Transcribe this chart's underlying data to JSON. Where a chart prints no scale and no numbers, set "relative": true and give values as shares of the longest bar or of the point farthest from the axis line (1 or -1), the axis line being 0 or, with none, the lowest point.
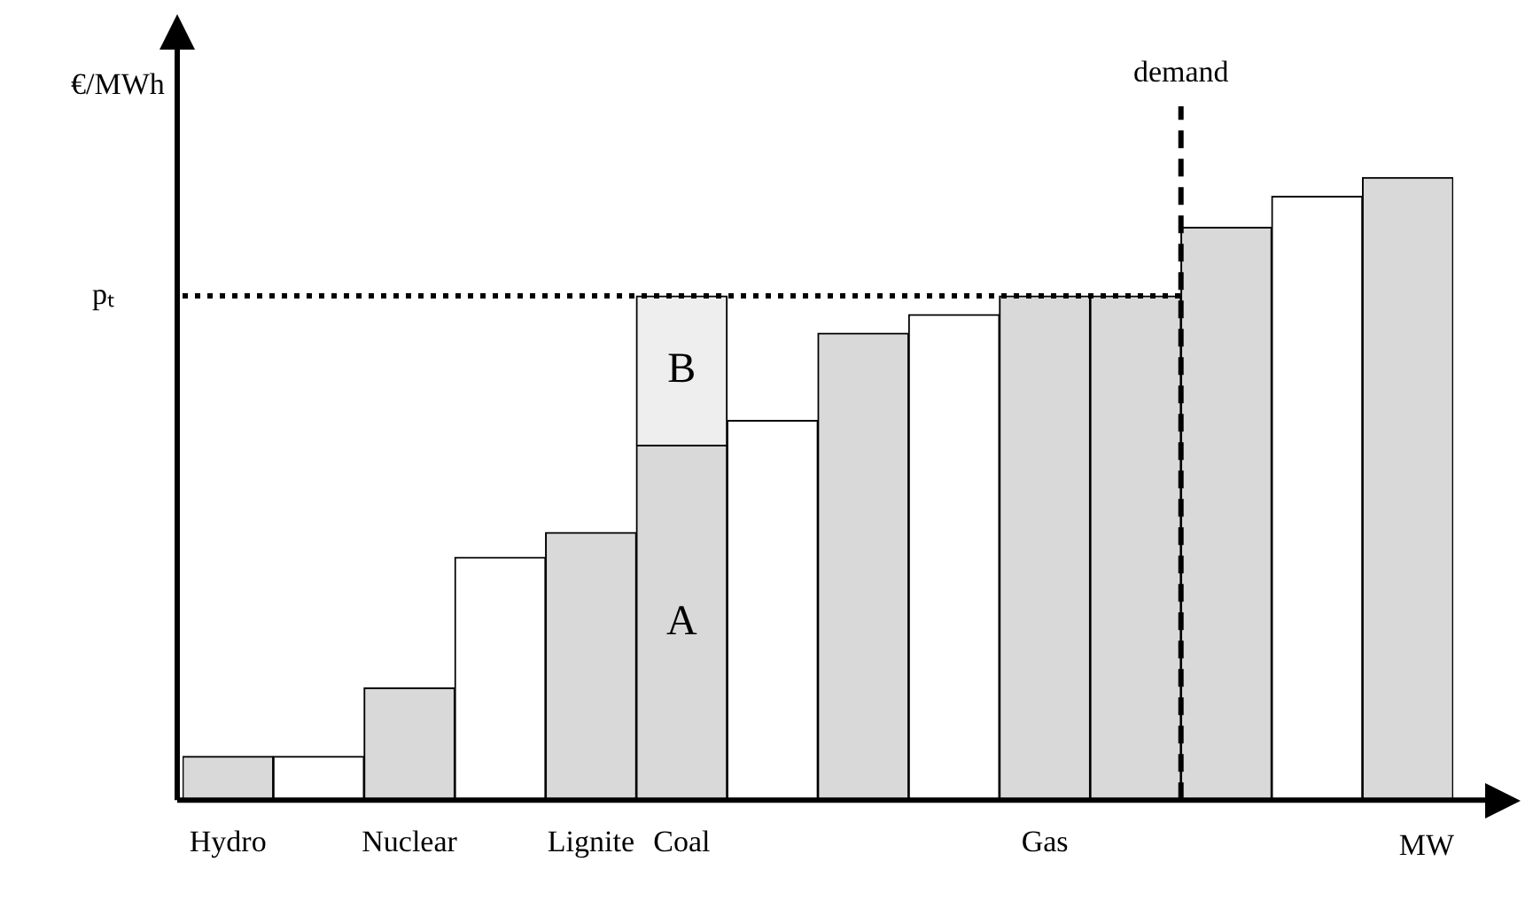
{
  "chart_data": {
    "type": "bar",
    "relative": true,
    "stacked": true,
    "ylabel": "€/MWh",
    "xlabel": "MW",
    "categories": [
      "Hydro",
      null,
      "Nuclear",
      null,
      "Lignite",
      "Coal",
      null,
      null,
      null,
      "Gas",
      null,
      null,
      null,
      null
    ],
    "series": [
      {
        "colors": [
          "#d9d9d9",
          "#ffffff",
          "#d9d9d9",
          "#ffffff",
          "#d9d9d9",
          "#d9d9d9",
          "#ffffff",
          "#d9d9d9",
          "#ffffff",
          "#d9d9d9",
          "#d9d9d9",
          "#d9d9d9",
          "#ffffff",
          "#d9d9d9"
        ],
        "values": [
          0.07,
          0.07,
          0.18,
          0.39,
          0.43,
          0.57,
          0.61,
          0.75,
          0.78,
          0.81,
          0.81,
          0.92,
          0.97,
          1
        ]
      },
      {
        "colors": [
          null,
          null,
          null,
          null,
          null,
          "#eeeeee",
          null,
          null,
          null,
          null,
          null,
          null,
          null,
          null
        ],
        "values": [
          null,
          null,
          null,
          null,
          null,
          0.24,
          null,
          null,
          null,
          null,
          null,
          null,
          null,
          null
        ]
      }
    ],
    "ref_lines": [
      {
        "axis": "y",
        "value": 0.81,
        "label": "pₜ",
        "line_style": "dotted"
      }
    ],
    "annotations": [
      "A",
      "B",
      "demand"
    ],
    "legend": false,
    "grid": false
  }
}
